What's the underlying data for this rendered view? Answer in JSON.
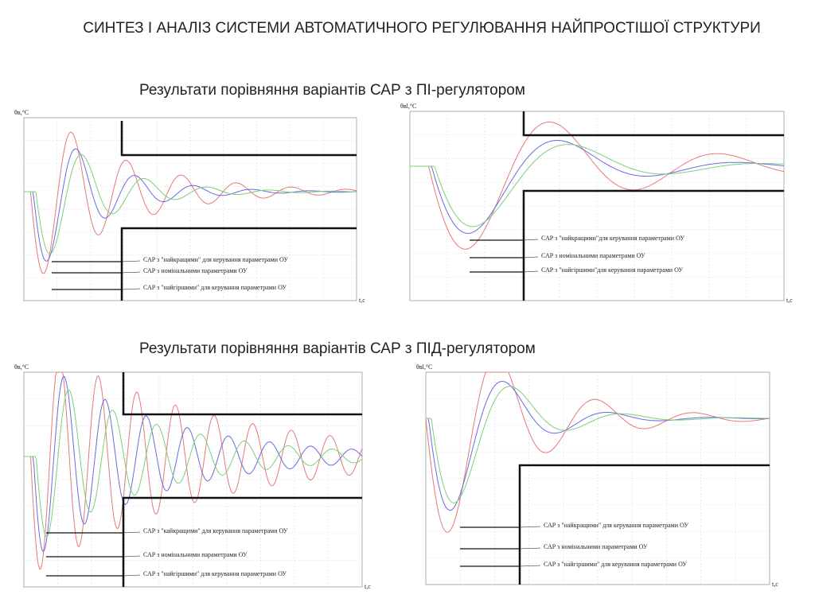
{
  "title": "СИНТЕЗ І АНАЛІЗ СИСТЕМИ АВТОМАТИЧНОГО РЕГУЛЮВАННЯ НАЙПРОСТІШОЇ СТРУКТУРИ",
  "sections": [
    {
      "heading": "Результати порівняння варіантів САР з ПІ-регулятором",
      "panels": [
        {
          "y_label": "θв,°С",
          "x_label": "t,c",
          "labels": [
            "САР з \"найкращими\" для керування параметрами ОУ",
            "САР з номінальними параметрами ОУ",
            "САР з \"найгіршими\" для керування параметрами ОУ"
          ]
        },
        {
          "y_label": "θвl,°С",
          "x_label": "t,c",
          "labels": [
            "САР з \"найкращими\"для керування параметрами ОУ",
            "САР з номінальними параметрами ОУ",
            "САР з \"найгіршими\"для керування параметрами ОУ"
          ]
        }
      ]
    },
    {
      "heading": "Результати порівняння варіантів САР з ПІД-регулятором",
      "panels": [
        {
          "y_label": "θв,°С",
          "x_label": "t,c",
          "labels": [
            "САР з \"кайкращими\" для керування параметрами ОУ",
            "САР з номінальними параметрами ОУ",
            "САР з \"найгіршими\" для керування параметрами ОУ"
          ]
        },
        {
          "y_label": "θвl,°С",
          "x_label": "t,c",
          "labels": [
            "САР з \"найкращими\" для керування параметрами ОУ",
            "САР з номінальними параметрами ОУ",
            "САР з \"найгіршими\" для керування параметрами ОУ"
          ]
        }
      ]
    }
  ]
}
